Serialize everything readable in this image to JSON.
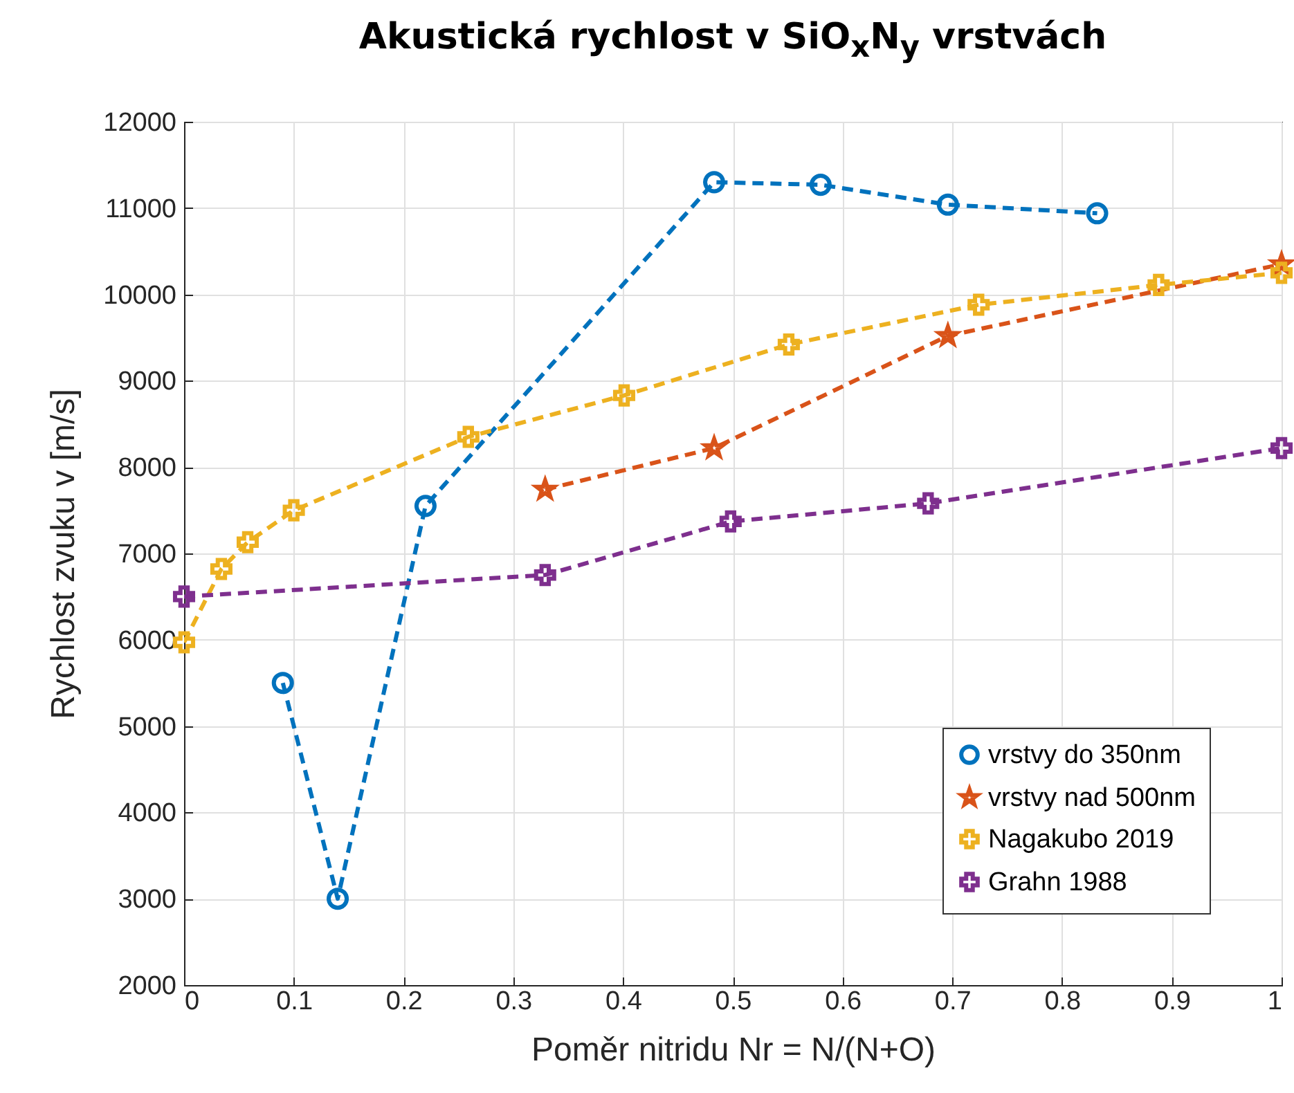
{
  "chart_data": {
    "type": "line",
    "title": "Akustická rychlost v SiO$_{x}$N$_{y}$ vrstvách",
    "xlabel": "Poměr nitridu Nr = N/(N+O)",
    "ylabel": "Rychlost zvuku v [m/s]",
    "xlim": [
      0,
      1
    ],
    "xticks": [
      0,
      0.1,
      0.2,
      0.3,
      0.4,
      0.5,
      0.6,
      0.7,
      0.8,
      0.9,
      1
    ],
    "ylim": [
      2000,
      12000
    ],
    "yticks": [
      2000,
      3000,
      4000,
      5000,
      6000,
      7000,
      8000,
      9000,
      10000,
      11000,
      12000
    ],
    "grid": true,
    "legend": "bottom right",
    "line_style": "dashed",
    "series": [
      {
        "name": "vrstvy do 350nm",
        "color": "#0072bd",
        "marker": "circle",
        "x": [
          0.09,
          0.14,
          0.22,
          0.483,
          0.58,
          0.696,
          0.832
        ],
        "values": [
          5500,
          3000,
          7550,
          11300,
          11270,
          11040,
          10940
        ]
      },
      {
        "name": "vrstvy nad 500nm",
        "color": "#d95319",
        "marker": "star",
        "x": [
          0.329,
          0.483,
          0.696,
          1.0
        ],
        "values": [
          7740,
          8220,
          9520,
          10350
        ]
      },
      {
        "name": "Nagakubo 2019",
        "color": "#edb120",
        "marker": "cross",
        "x": [
          0,
          0.034,
          0.058,
          0.1,
          0.259,
          0.401,
          0.551,
          0.724,
          0.888,
          1.0
        ],
        "values": [
          5970,
          6820,
          7130,
          7500,
          8350,
          8830,
          9420,
          9880,
          10110,
          10250
        ]
      },
      {
        "name": "Grahn 1988",
        "color": "#7e2f8e",
        "marker": "cross",
        "x": [
          0,
          0.329,
          0.498,
          0.678,
          1.0
        ],
        "values": [
          6500,
          6750,
          7370,
          7580,
          8220
        ]
      }
    ]
  }
}
